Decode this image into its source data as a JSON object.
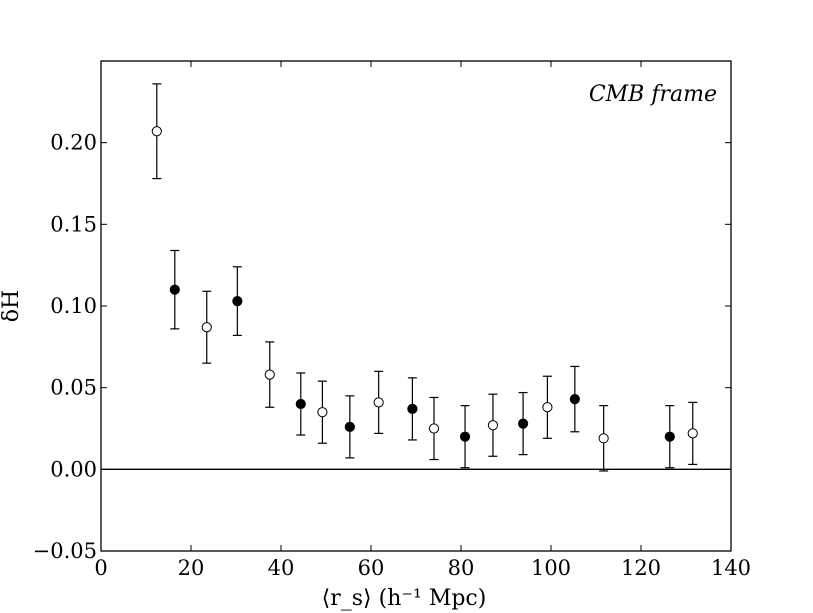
{
  "chart_data": {
    "type": "scatter",
    "title": "",
    "xlabel": "⟨r_s⟩ (h⁻¹ Mpc)",
    "ylabel": "δH",
    "annotation": "CMB frame",
    "xlim": [
      0,
      140
    ],
    "ylim": [
      -0.05,
      0.25
    ],
    "xticks": [
      0,
      20,
      40,
      60,
      80,
      100,
      120,
      140
    ],
    "xtick_labels": [
      "0",
      "20",
      "40",
      "60",
      "80",
      "100",
      "120",
      "140"
    ],
    "yticks": [
      -0.05,
      0.0,
      0.05,
      0.1,
      0.15,
      0.2
    ],
    "ytick_labels": [
      "−0.05",
      "0.00",
      "0.05",
      "0.10",
      "0.15",
      "0.20"
    ],
    "reference_line_y": 0.0,
    "grid": false,
    "series": [
      {
        "marker": "filled-circle",
        "x": [
          16.4,
          30.3,
          44.4,
          55.3,
          69.2,
          80.9,
          93.8,
          105.3,
          126.4
        ],
        "y": [
          0.11,
          0.103,
          0.04,
          0.026,
          0.037,
          0.02,
          0.028,
          0.043,
          0.02
        ],
        "err": [
          0.024,
          0.021,
          0.019,
          0.019,
          0.019,
          0.019,
          0.019,
          0.02,
          0.019
        ]
      },
      {
        "marker": "open-circle",
        "x": [
          12.4,
          23.5,
          37.5,
          49.2,
          61.7,
          74.0,
          87.1,
          99.2,
          111.7,
          131.5
        ],
        "y": [
          0.207,
          0.087,
          0.058,
          0.035,
          0.041,
          0.025,
          0.027,
          0.038,
          0.019,
          0.022
        ],
        "err": [
          0.029,
          0.022,
          0.02,
          0.019,
          0.019,
          0.019,
          0.019,
          0.019,
          0.02,
          0.019
        ]
      }
    ]
  }
}
